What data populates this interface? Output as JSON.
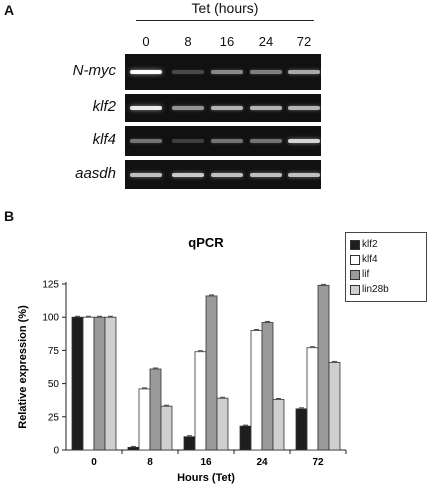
{
  "panelA": {
    "letter": "A",
    "header": "Tet (hours)",
    "timepoints": [
      "0",
      "8",
      "16",
      "24",
      "72"
    ],
    "genes": [
      {
        "name": "N-myc",
        "band_intensity": [
          1.0,
          0.15,
          0.45,
          0.4,
          0.6
        ]
      },
      {
        "name": "klf2",
        "band_intensity": [
          0.9,
          0.5,
          0.65,
          0.65,
          0.65
        ]
      },
      {
        "name": "klf4",
        "band_intensity": [
          0.35,
          0.1,
          0.35,
          0.35,
          0.8
        ]
      },
      {
        "name": "aasdh",
        "band_intensity": [
          0.7,
          0.75,
          0.7,
          0.7,
          0.7
        ]
      }
    ]
  },
  "panelB": {
    "letter": "B",
    "title": "qPCR",
    "xlabel": "Hours (Tet)",
    "ylabel": "Relative expression (%)",
    "legend": [
      "klf2",
      "klf4",
      "lif",
      "lin28b"
    ],
    "colors": [
      "#1e1e1e",
      "#ffffff",
      "#9a9a9a",
      "#cfcfcf"
    ]
  },
  "chart_data": {
    "type": "bar",
    "title": "qPCR",
    "xlabel": "Hours (Tet)",
    "ylabel": "Relative expression (%)",
    "categories": [
      "0",
      "8",
      "16",
      "24",
      "72"
    ],
    "ylim": [
      0,
      125
    ],
    "yticks": [
      "0",
      "25",
      "50",
      "75",
      "100",
      "125"
    ],
    "legend_position": "top-right",
    "series": [
      {
        "name": "klf2",
        "values": [
          100,
          2,
          10,
          18,
          31
        ]
      },
      {
        "name": "klf4",
        "values": [
          100,
          46,
          74,
          90,
          77
        ]
      },
      {
        "name": "lif",
        "values": [
          100,
          61,
          116,
          96,
          124
        ]
      },
      {
        "name": "lin28b",
        "values": [
          100,
          33,
          39,
          38,
          66
        ]
      }
    ]
  }
}
